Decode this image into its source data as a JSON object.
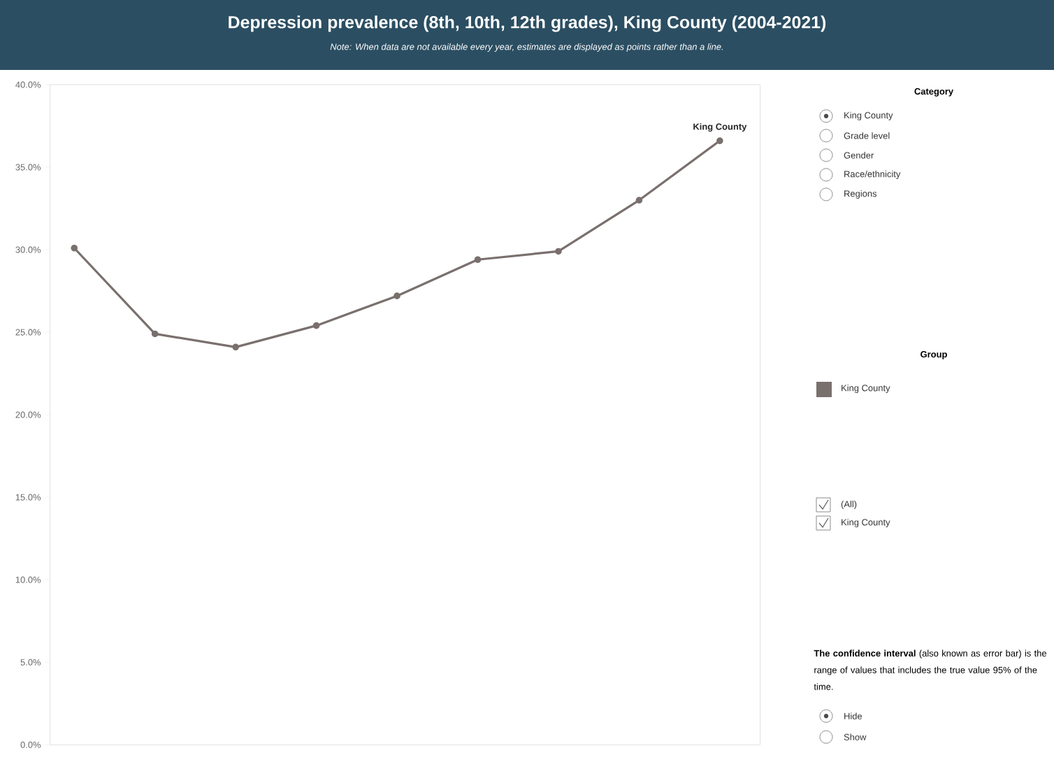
{
  "chart_data": {
    "type": "line",
    "title": "Depression prevalence (8th, 10th, 12th grades), King County (2004-2021)",
    "subtitle": "Note: When data are not available every year, estimates are displayed as points rather than a line.",
    "categories": [
      null,
      null,
      null,
      null,
      null,
      null,
      null,
      null,
      null
    ],
    "series": [
      {
        "name": "King County",
        "color": "#79706e",
        "values": [
          30.1,
          24.9,
          24.1,
          25.4,
          27.2,
          29.4,
          29.9,
          33.0,
          36.6
        ]
      }
    ],
    "ylim": [
      0,
      40
    ],
    "yticks": [
      {
        "value": 0,
        "label": "0.0%"
      },
      {
        "value": 5,
        "label": "5.0%"
      },
      {
        "value": 10,
        "label": "10.0%"
      },
      {
        "value": 15,
        "label": "15.0%"
      },
      {
        "value": 20,
        "label": "20.0%"
      },
      {
        "value": 25,
        "label": "25.0%"
      },
      {
        "value": 30,
        "label": "30.0%"
      },
      {
        "value": 35,
        "label": "35.0%"
      },
      {
        "value": 40,
        "label": "40.0%"
      }
    ],
    "marker": "circle",
    "line_style": "solid",
    "grid": false,
    "legend": "right",
    "legend_title": "Group",
    "annotations": [
      "Category",
      "King County",
      "Grade level",
      "Gender",
      "Race/ethnicity",
      "Regions",
      "(All)",
      "King County",
      "**The confidence interval** (also known as error bar) is the range of values that includes the true value 95% of the time.",
      "Hide",
      "Show"
    ]
  }
}
